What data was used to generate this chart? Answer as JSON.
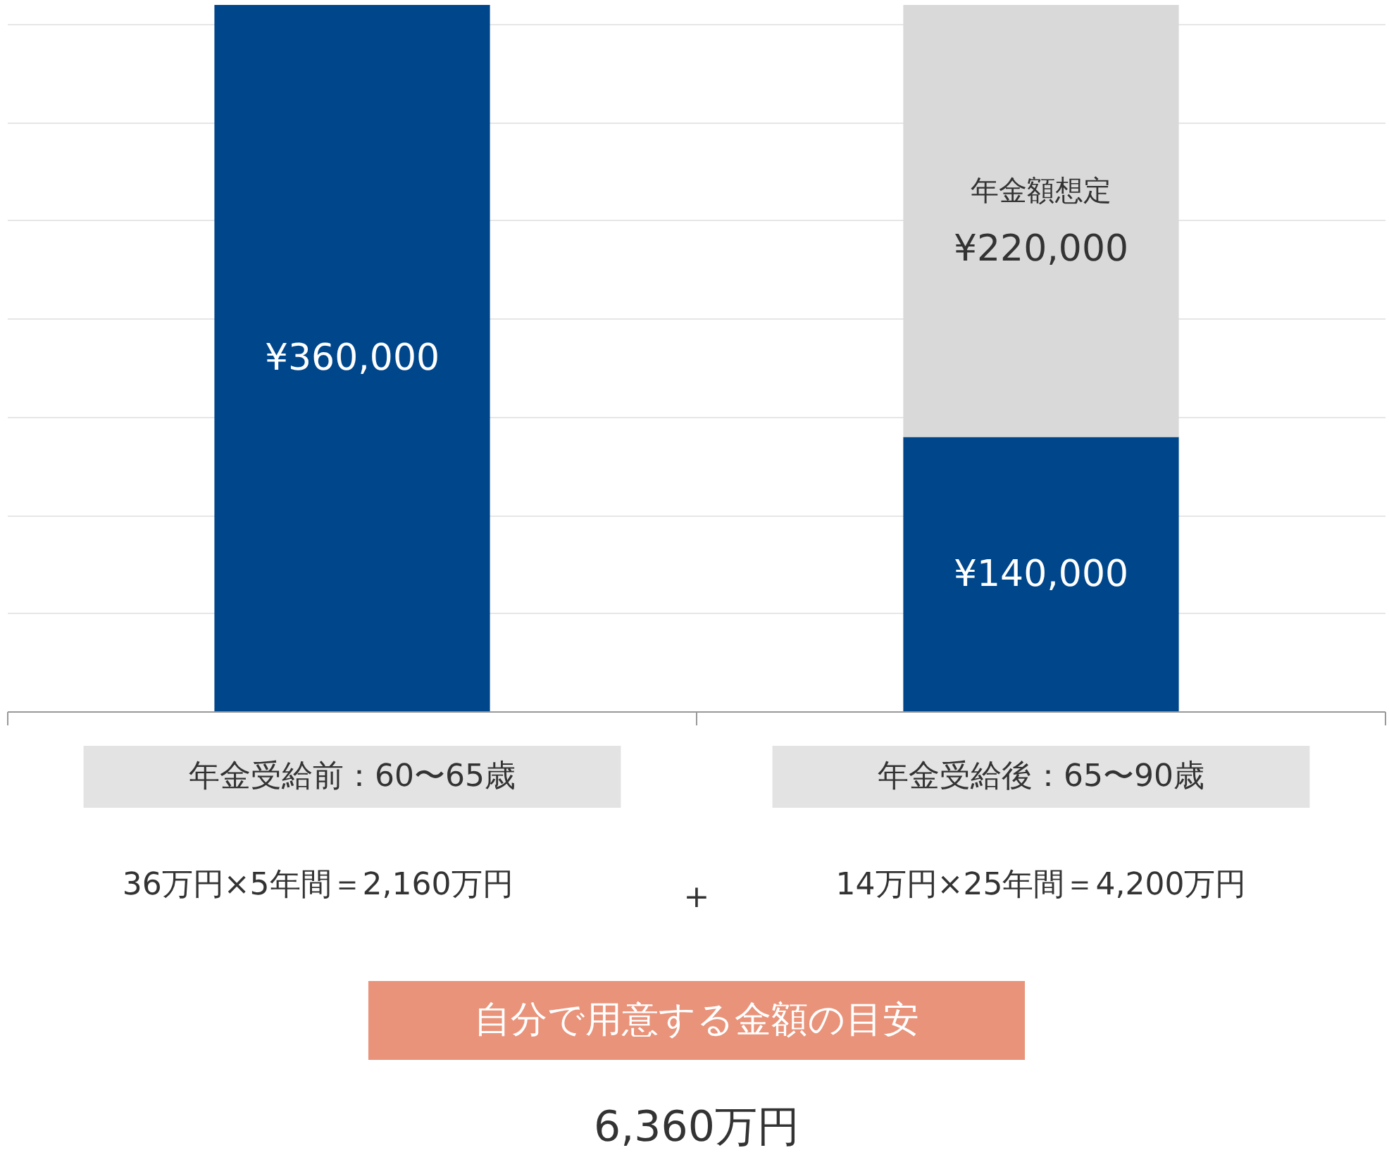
{
  "chart_data": {
    "type": "bar",
    "stacked": true,
    "categories": [
      "年金受給前：60〜65歳",
      "年金受給後：65〜90歳"
    ],
    "series": [
      {
        "color": "#00468b",
        "values": [
          360000,
          140000
        ],
        "value_labels": [
          "¥360,000",
          "¥140,000"
        ]
      },
      {
        "name": "年金額想定",
        "color": "#d9d9d9",
        "values": [
          null,
          220000
        ],
        "value_labels": [
          null,
          "¥220,000"
        ]
      }
    ],
    "ylim": [
      0,
      360000
    ],
    "yticks": [
      {
        "value": 0,
        "label": null
      },
      {
        "value": 50000,
        "label": null
      },
      {
        "value": 100000,
        "label": null
      },
      {
        "value": 150000,
        "label": null
      },
      {
        "value": 200000,
        "label": null
      },
      {
        "value": 250000,
        "label": null
      },
      {
        "value": 300000,
        "label": null
      },
      {
        "value": 350000,
        "label": null
      }
    ],
    "grid": "y",
    "tick_labels": "x",
    "annotations": [
      "36万円×5年間＝2,160万円",
      "+",
      "14万円×25年間＝4,200万円",
      "自分で用意する金額の目安",
      "6,360万円"
    ]
  }
}
